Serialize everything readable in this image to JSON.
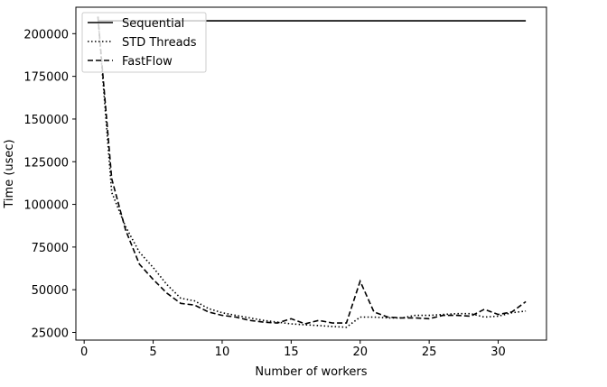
{
  "chart_data": {
    "type": "line",
    "title": "",
    "xlabel": "Number of workers",
    "ylabel": "Time (usec)",
    "xlim": [
      -0.6,
      33.5
    ],
    "ylim": [
      20500,
      215500
    ],
    "xticks": [
      0,
      5,
      10,
      15,
      20,
      25,
      30
    ],
    "yticks": [
      25000,
      50000,
      75000,
      100000,
      125000,
      150000,
      175000,
      200000
    ],
    "grid": false,
    "legend_position": "top-left",
    "series": [
      {
        "name": "Sequential",
        "style": "solid",
        "x": [
          1,
          32
        ],
        "y": [
          207500,
          207500
        ]
      },
      {
        "name": "STD Threads",
        "style": "dotted",
        "x": [
          1,
          2,
          3,
          4,
          5,
          6,
          7,
          8,
          9,
          10,
          11,
          12,
          13,
          14,
          15,
          16,
          17,
          18,
          19,
          20,
          21,
          22,
          23,
          24,
          25,
          26,
          27,
          28,
          29,
          30,
          31,
          32
        ],
        "y": [
          210000,
          107000,
          87000,
          72000,
          63000,
          53000,
          45000,
          43500,
          39000,
          36500,
          35000,
          33500,
          32000,
          31000,
          30000,
          29500,
          29000,
          28500,
          28000,
          34000,
          34000,
          33500,
          33500,
          35000,
          35000,
          35500,
          36000,
          36000,
          34000,
          34500,
          36500,
          37500
        ]
      },
      {
        "name": "FastFlow",
        "style": "dashed",
        "x": [
          1,
          2,
          3,
          4,
          5,
          6,
          7,
          8,
          9,
          10,
          11,
          12,
          13,
          14,
          15,
          16,
          17,
          18,
          19,
          20,
          21,
          22,
          23,
          24,
          25,
          26,
          27,
          28,
          29,
          30,
          31,
          32
        ],
        "y": [
          210000,
          115000,
          85000,
          65000,
          56000,
          48000,
          42000,
          41000,
          37000,
          35000,
          34000,
          32000,
          31000,
          30500,
          33000,
          30000,
          32000,
          30500,
          30500,
          55000,
          37000,
          34000,
          33500,
          33500,
          33000,
          35000,
          35000,
          34500,
          38500,
          35500,
          37000,
          43000
        ]
      }
    ]
  }
}
